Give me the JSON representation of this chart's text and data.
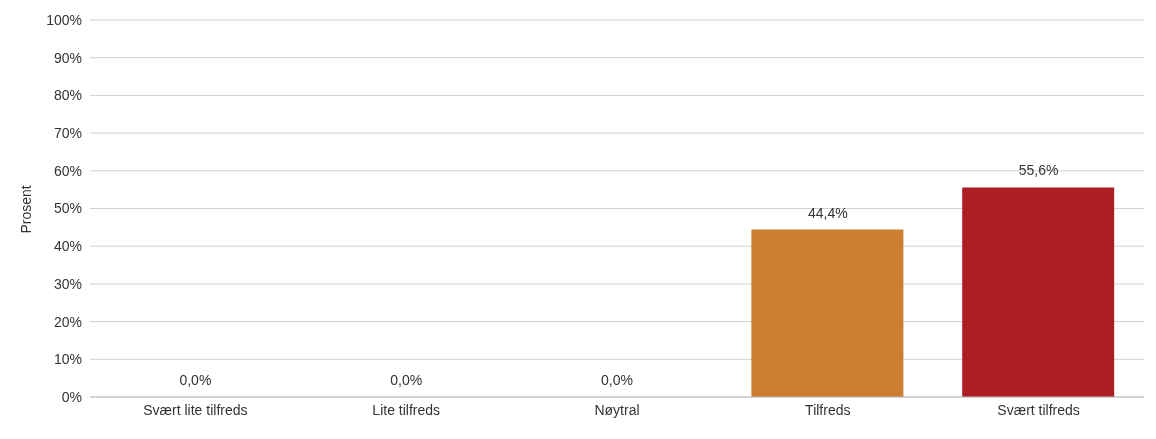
{
  "chart_data": {
    "type": "bar",
    "ylabel": "Prosent",
    "categories": [
      "Svært lite tilfreds",
      "Lite tilfreds",
      "Nøytral",
      "Tilfreds",
      "Svært tilfreds"
    ],
    "values": [
      0,
      0,
      0,
      44.4,
      55.6
    ],
    "colors": [
      "#d9a441",
      "#d9a441",
      "#d9a441",
      "#cc7f30",
      "#ad1e23"
    ],
    "value_labels": [
      "0,0%",
      "0,0%",
      "0,0%",
      "44,4%",
      "55,6%"
    ],
    "ylim": [
      0,
      100
    ],
    "yticks": [
      {
        "value": 0,
        "label": "0%"
      },
      {
        "value": 10,
        "label": "10%"
      },
      {
        "value": 20,
        "label": "20%"
      },
      {
        "value": 30,
        "label": "30%"
      },
      {
        "value": 40,
        "label": "40%"
      },
      {
        "value": 50,
        "label": "50%"
      },
      {
        "value": 60,
        "label": "60%"
      },
      {
        "value": 70,
        "label": "70%"
      },
      {
        "value": 80,
        "label": "80%"
      },
      {
        "value": 90,
        "label": "90%"
      },
      {
        "value": 100,
        "label": "100%"
      }
    ],
    "grid": "y",
    "legend": false
  }
}
